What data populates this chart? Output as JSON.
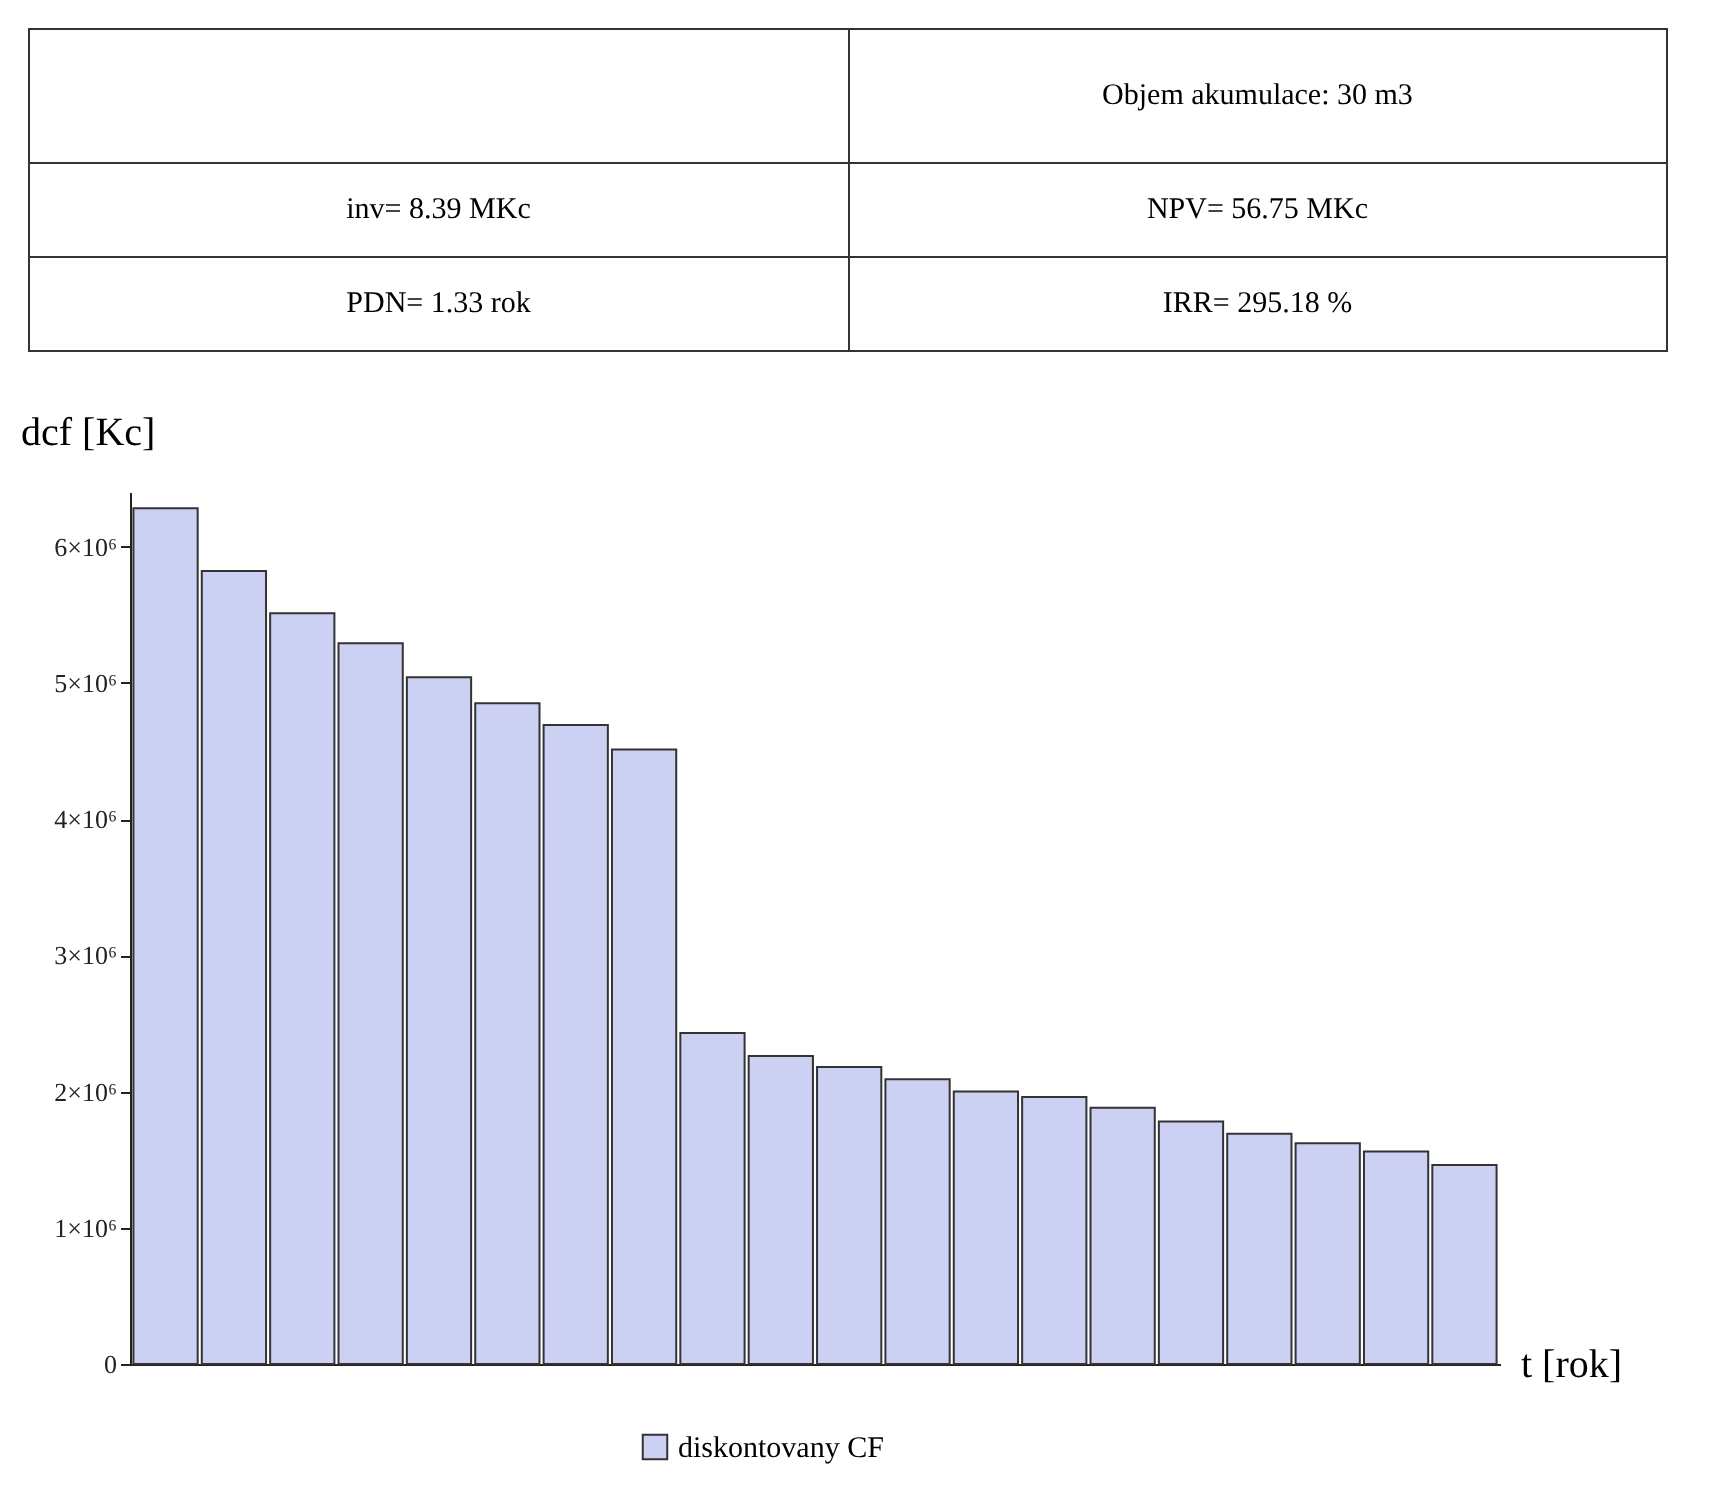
{
  "chart_data": [
    {
      "type": "other",
      "annotations": [
        "Objem akumulace: 30 m3",
        "inv= 8.39 MKc",
        "NPV= 56.75 MKc",
        "PDN= 1.33 rok",
        "IRR= 295.18 %"
      ]
    },
    {
      "type": "bar",
      "xlabel": "t [rok]",
      "ylabel": "dcf [Kc]",
      "categories": [
        null,
        null,
        null,
        null,
        null,
        null,
        null,
        null,
        null,
        null,
        null,
        null,
        null,
        null,
        null,
        null,
        null,
        null,
        null,
        null
      ],
      "series": [
        {
          "name": "diskontovany CF",
          "color": "#ccd0f2",
          "values": [
            6280000,
            5820000,
            5510000,
            5290000,
            5040000,
            4850000,
            4690000,
            4510000,
            2430000,
            2260000,
            2180000,
            2090000,
            2000000,
            1960000,
            1880000,
            1780000,
            1690000,
            1620000,
            1560000,
            1460000
          ]
        }
      ],
      "ylim": [
        0,
        6400000
      ],
      "yticks": [
        {
          "value": 0,
          "label": "0"
        },
        {
          "value": 1000000,
          "label": "1×10⁶"
        },
        {
          "value": 2000000,
          "label": "2×10⁶"
        },
        {
          "value": 3000000,
          "label": "3×10⁶"
        },
        {
          "value": 4000000,
          "label": "4×10⁶"
        },
        {
          "value": 5000000,
          "label": "5×10⁶"
        },
        {
          "value": 6000000,
          "label": "6×10⁶"
        }
      ],
      "grid": false,
      "legend": "bottom"
    }
  ]
}
